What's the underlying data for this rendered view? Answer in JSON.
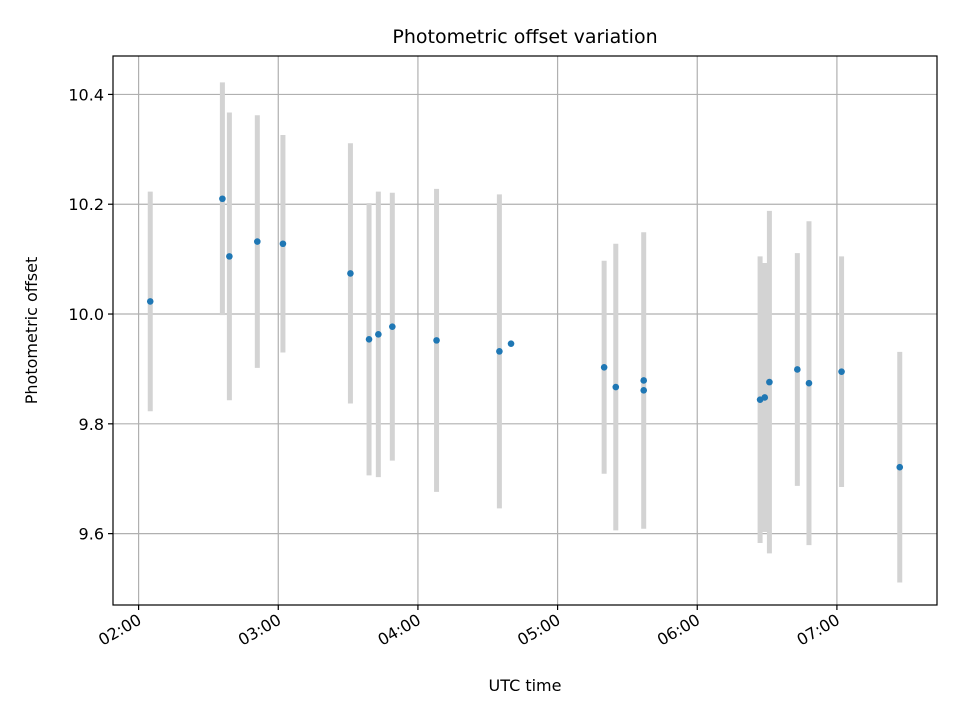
{
  "chart_data": {
    "type": "scatter",
    "title": "Photometric offset variation",
    "xlabel": "UTC time",
    "ylabel": "Photometric offset",
    "x_ticks": [
      "02:00",
      "03:00",
      "04:00",
      "05:00",
      "06:00",
      "07:00"
    ],
    "y_ticks": [
      "9.6",
      "9.8",
      "10.0",
      "10.2",
      "10.4"
    ],
    "xlim": [
      "01:49",
      "07:43"
    ],
    "ylim": [
      9.47,
      10.47
    ],
    "grid": true,
    "colors": {
      "marker": "#1f77b4",
      "errorbar": "#d3d3d3",
      "grid": "#b0b0b0"
    },
    "series": [
      {
        "points": [
          {
            "x": "02:05",
            "y": 10.023,
            "yerr": 0.2
          },
          {
            "x": "02:36",
            "y": 10.21,
            "yerr": 0.212
          },
          {
            "x": "02:39",
            "y": 10.105,
            "yerr": 0.262
          },
          {
            "x": "02:51",
            "y": 10.132,
            "yerr": 0.23
          },
          {
            "x": "03:02",
            "y": 10.128,
            "yerr": 0.198
          },
          {
            "x": "03:31",
            "y": 10.074,
            "yerr": 0.237
          },
          {
            "x": "03:39",
            "y": 9.954,
            "yerr": 0.248
          },
          {
            "x": "03:43",
            "y": 9.963,
            "yerr": 0.26
          },
          {
            "x": "03:49",
            "y": 9.977,
            "yerr": 0.244
          },
          {
            "x": "04:08",
            "y": 9.952,
            "yerr": 0.276
          },
          {
            "x": "04:35",
            "y": 9.932,
            "yerr": 0.286
          },
          {
            "x": "04:40",
            "y": 9.946,
            "yerr": 0.0
          },
          {
            "x": "05:20",
            "y": 9.903,
            "yerr": 0.194
          },
          {
            "x": "05:25",
            "y": 9.867,
            "yerr": 0.261
          },
          {
            "x": "05:37",
            "y": 9.861,
            "yerr": 0.0
          },
          {
            "x": "05:37",
            "y": 9.879,
            "yerr": 0.27
          },
          {
            "x": "06:27",
            "y": 9.844,
            "yerr": 0.261
          },
          {
            "x": "06:29",
            "y": 9.848,
            "yerr": 0.245
          },
          {
            "x": "06:31",
            "y": 9.876,
            "yerr": 0.312
          },
          {
            "x": "06:43",
            "y": 9.899,
            "yerr": 0.212
          },
          {
            "x": "06:48",
            "y": 9.874,
            "yerr": 0.295
          },
          {
            "x": "07:02",
            "y": 9.895,
            "yerr": 0.21
          },
          {
            "x": "07:27",
            "y": 9.721,
            "yerr": 0.21
          }
        ]
      }
    ]
  }
}
